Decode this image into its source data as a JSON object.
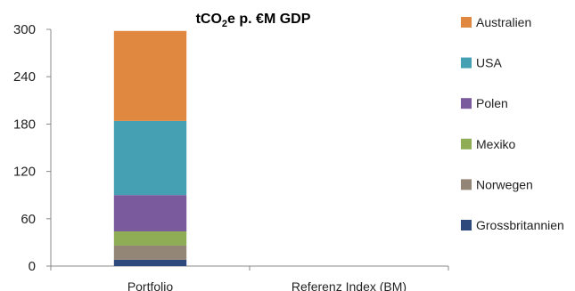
{
  "chart_data": {
    "type": "bar",
    "stacked": true,
    "title_main": "tCO",
    "title_sub": "2",
    "title_rest": "e p. €M GDP",
    "categories": [
      "Portfolio",
      "Referenz Index (BM)"
    ],
    "ylim": [
      0,
      300
    ],
    "yticks": [
      "0",
      "60",
      "120",
      "180",
      "240",
      "300"
    ],
    "grid": false,
    "legend_position": "right",
    "series": [
      {
        "name": "Grossbritannien",
        "color": "#2e4a7d",
        "values": [
          8,
          0
        ]
      },
      {
        "name": "Norwegen",
        "color": "#938677",
        "values": [
          18,
          0
        ]
      },
      {
        "name": "Mexiko",
        "color": "#8fad55",
        "values": [
          18,
          0
        ]
      },
      {
        "name": "Polen",
        "color": "#7a5a9c",
        "values": [
          46,
          0
        ]
      },
      {
        "name": "USA",
        "color": "#46a0b4",
        "values": [
          94,
          0
        ]
      },
      {
        "name": "Australien",
        "color": "#e08840",
        "values": [
          114,
          0
        ]
      }
    ]
  }
}
